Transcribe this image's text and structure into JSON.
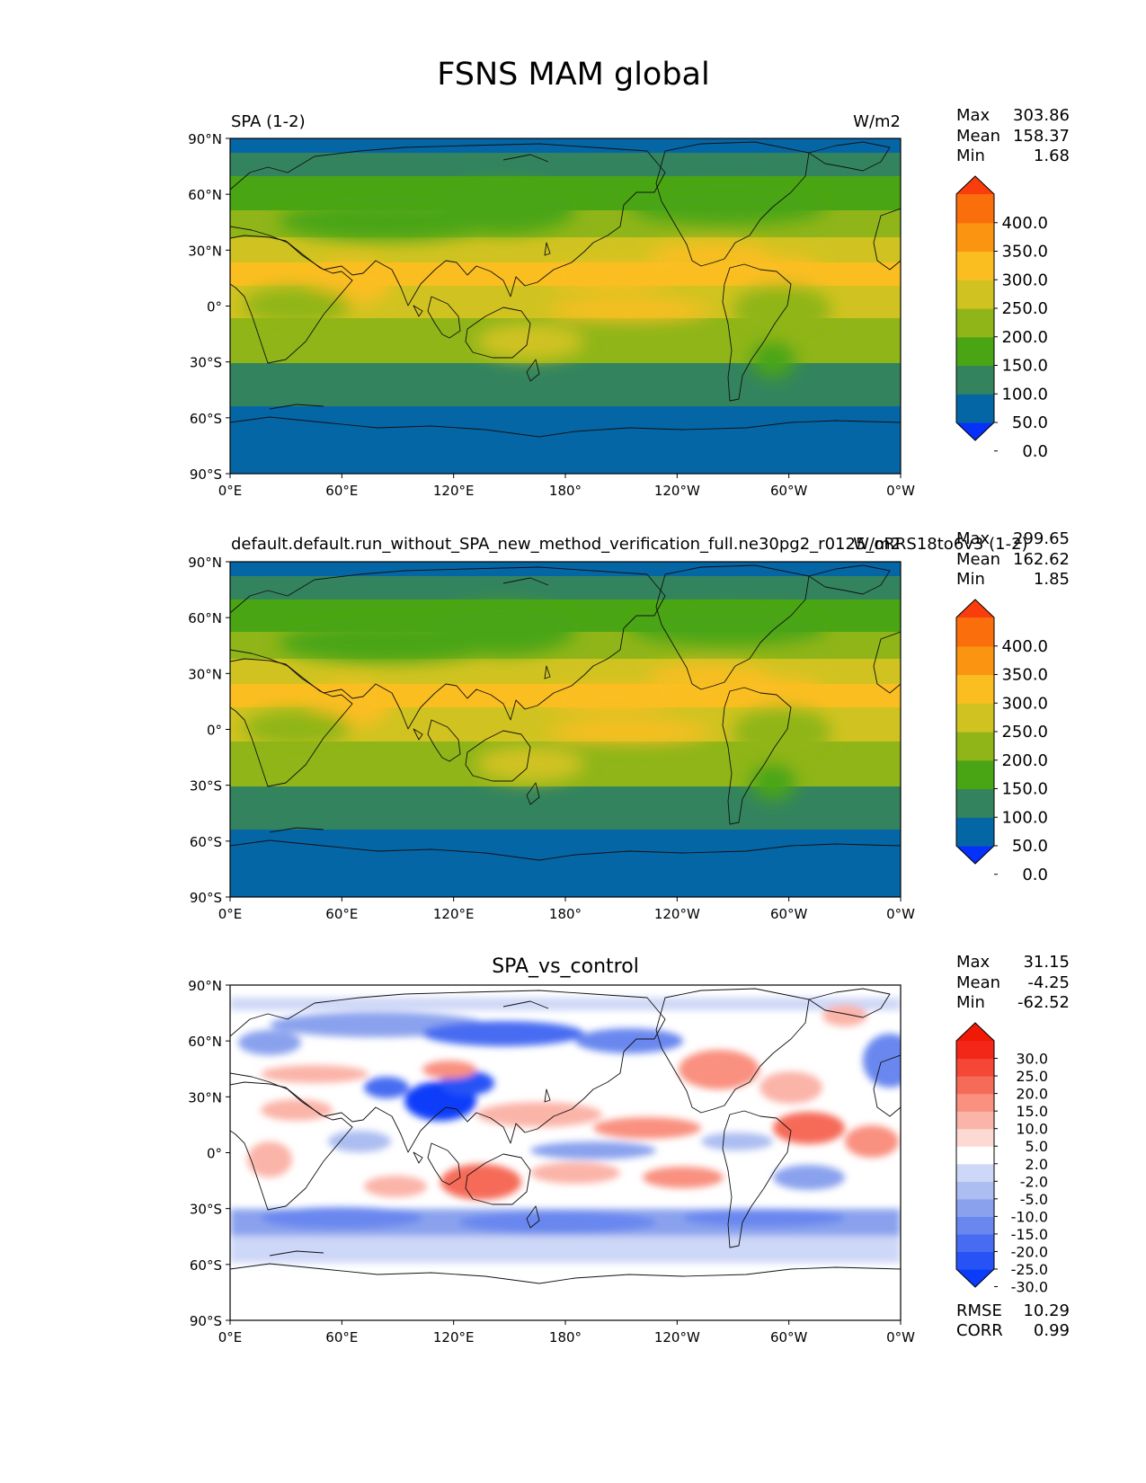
{
  "figure": {
    "title": "FSNS MAM global"
  },
  "panels": [
    {
      "left_title": "SPA (1-2)",
      "center_title": "",
      "right_title": "W/m2",
      "stats": [
        {
          "label": "Max",
          "value": "303.86"
        },
        {
          "label": "Mean",
          "value": "158.37"
        },
        {
          "label": "Min",
          "value": "1.68"
        }
      ],
      "colorbar": {
        "ticks": [
          "400.0",
          "350.0",
          "300.0",
          "250.0",
          "200.0",
          "150.0",
          "100.0",
          "50.0",
          "0.0"
        ],
        "colors": [
          "#0531f8",
          "#0566a6",
          "#33845e",
          "#4aa514",
          "#8fb519",
          "#d0c321",
          "#fbbe21",
          "#fb9410",
          "#fa6e0c",
          "#fa3d0d"
        ]
      },
      "footer_stats": []
    },
    {
      "left_title": "default.default.run_without_SPA_new_method_verification_full.ne30pg2_r0125_oRRS18to6v3 (1-2)",
      "center_title": "",
      "right_title": "W/m2",
      "stats": [
        {
          "label": "Max",
          "value": "299.65"
        },
        {
          "label": "Mean",
          "value": "162.62"
        },
        {
          "label": "Min",
          "value": "1.85"
        }
      ],
      "colorbar": {
        "ticks": [
          "400.0",
          "350.0",
          "300.0",
          "250.0",
          "200.0",
          "150.0",
          "100.0",
          "50.0",
          "0.0"
        ],
        "colors": [
          "#0531f8",
          "#0566a6",
          "#33845e",
          "#4aa514",
          "#8fb519",
          "#d0c321",
          "#fbbe21",
          "#fb9410",
          "#fa6e0c",
          "#fa3d0d"
        ]
      },
      "footer_stats": []
    },
    {
      "left_title": "",
      "center_title": "SPA_vs_control",
      "right_title": "",
      "stats": [
        {
          "label": "Max",
          "value": "31.15"
        },
        {
          "label": "Mean",
          "value": "-4.25"
        },
        {
          "label": "Min",
          "value": "-62.52"
        }
      ],
      "colorbar": {
        "ticks": [
          "30.0",
          "25.0",
          "20.0",
          "15.0",
          "10.0",
          "5.0",
          "2.0",
          "-2.0",
          "-5.0",
          "-10.0",
          "-15.0",
          "-20.0",
          "-25.0",
          "-30.0"
        ],
        "colors": [
          "#0a3cf9",
          "#2753f6",
          "#476cf2",
          "#6987ef",
          "#8aa2ee",
          "#acbdf1",
          "#cdd7f7",
          "#ffffff",
          "#fdd9d4",
          "#fbb4a8",
          "#f99080",
          "#f66b58",
          "#f44735",
          "#f32617",
          "#f21806"
        ]
      },
      "footer_stats": [
        {
          "label": "RMSE",
          "value": "10.29"
        },
        {
          "label": "CORR",
          "value": "0.99"
        }
      ]
    }
  ],
  "axes": {
    "lat_ticks": [
      "90°N",
      "60°N",
      "30°N",
      "0°",
      "30°S",
      "60°S",
      "90°S"
    ],
    "lon_ticks": [
      "0°E",
      "60°E",
      "120°E",
      "180°",
      "120°W",
      "60°W",
      "0°W"
    ]
  },
  "chart_data": [
    {
      "type": "heatmap",
      "title": "SPA (1-2)",
      "units": "W/m2",
      "stats": {
        "max": 303.86,
        "mean": 158.37,
        "min": 1.68
      },
      "levels": [
        0,
        50,
        100,
        150,
        200,
        250,
        300,
        350,
        400
      ],
      "xlim": [
        0,
        360
      ],
      "ylim": [
        -90,
        90
      ],
      "zonal_profile": [
        {
          "lat": 85,
          "value": 40
        },
        {
          "lat": 70,
          "value": 80
        },
        {
          "lat": 55,
          "value": 125
        },
        {
          "lat": 40,
          "value": 170
        },
        {
          "lat": 25,
          "value": 220
        },
        {
          "lat": 15,
          "value": 250
        },
        {
          "lat": 0,
          "value": 215
        },
        {
          "lat": -15,
          "value": 230
        },
        {
          "lat": -30,
          "value": 185
        },
        {
          "lat": -45,
          "value": 120
        },
        {
          "lat": -60,
          "value": 75
        },
        {
          "lat": -75,
          "value": 30
        },
        {
          "lat": -85,
          "value": 20
        }
      ]
    },
    {
      "type": "heatmap",
      "title": "default.default.run_without_SPA_new_method_verification_full.ne30pg2_r0125_oRRS18to6v3 (1-2)",
      "units": "W/m2",
      "stats": {
        "max": 299.65,
        "mean": 162.62,
        "min": 1.85
      },
      "levels": [
        0,
        50,
        100,
        150,
        200,
        250,
        300,
        350,
        400
      ],
      "xlim": [
        0,
        360
      ],
      "ylim": [
        -90,
        90
      ],
      "zonal_profile": [
        {
          "lat": 85,
          "value": 42
        },
        {
          "lat": 70,
          "value": 82
        },
        {
          "lat": 55,
          "value": 130
        },
        {
          "lat": 40,
          "value": 175
        },
        {
          "lat": 25,
          "value": 225
        },
        {
          "lat": 15,
          "value": 250
        },
        {
          "lat": 0,
          "value": 220
        },
        {
          "lat": -15,
          "value": 235
        },
        {
          "lat": -30,
          "value": 190
        },
        {
          "lat": -45,
          "value": 125
        },
        {
          "lat": -60,
          "value": 78
        },
        {
          "lat": -75,
          "value": 32
        },
        {
          "lat": -85,
          "value": 20
        }
      ]
    },
    {
      "type": "heatmap",
      "title": "SPA_vs_control",
      "stats": {
        "max": 31.15,
        "mean": -4.25,
        "min": -62.52,
        "rmse": 10.29,
        "corr": 0.99
      },
      "levels": [
        -30,
        -25,
        -20,
        -15,
        -10,
        -5,
        -2,
        2,
        5,
        10,
        15,
        20,
        25,
        30
      ],
      "xlim": [
        0,
        360
      ],
      "ylim": [
        -90,
        90
      ]
    }
  ]
}
